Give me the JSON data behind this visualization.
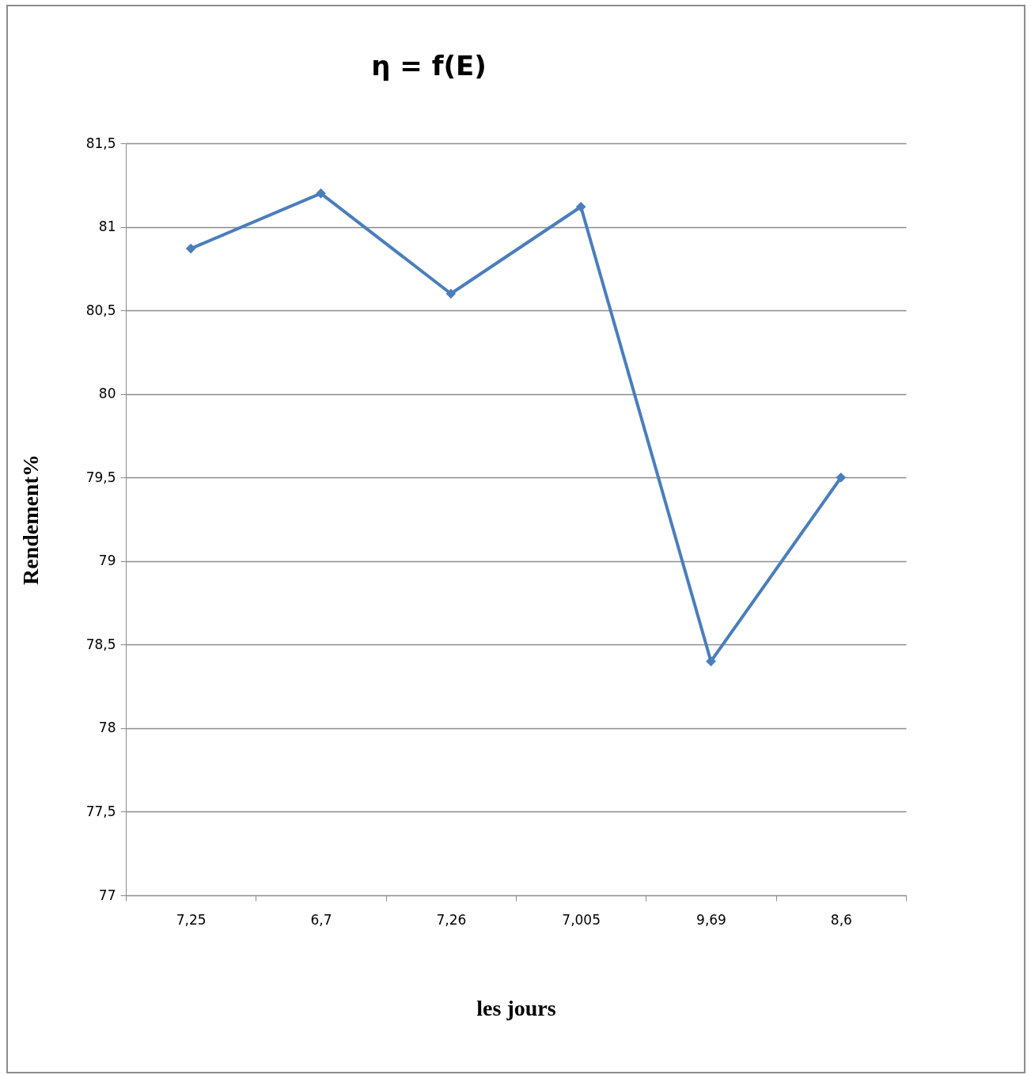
{
  "chart_data": {
    "type": "line",
    "title": "η = f(E)",
    "xlabel": "les jours",
    "ylabel": "Rendement%",
    "categories": [
      "7,25",
      "6,7",
      "7,26",
      "7,005",
      "9,69",
      "8,6"
    ],
    "series": [
      {
        "color": "#4a7ebb",
        "values": [
          80.87,
          81.2,
          80.6,
          81.12,
          78.4,
          79.5
        ]
      }
    ],
    "ylim": [
      77,
      81.5
    ],
    "yticks": [
      77,
      {
        "value": 77.5,
        "label": "77,5"
      },
      78,
      {
        "value": 78.5,
        "label": "78,5"
      },
      79,
      {
        "value": 79.5,
        "label": "79,5"
      },
      80,
      {
        "value": 80.5,
        "label": "80,5"
      },
      81,
      {
        "value": 81.5,
        "label": "81,5"
      }
    ],
    "grid": "y",
    "marker": "diamond",
    "line_style": "solid"
  }
}
